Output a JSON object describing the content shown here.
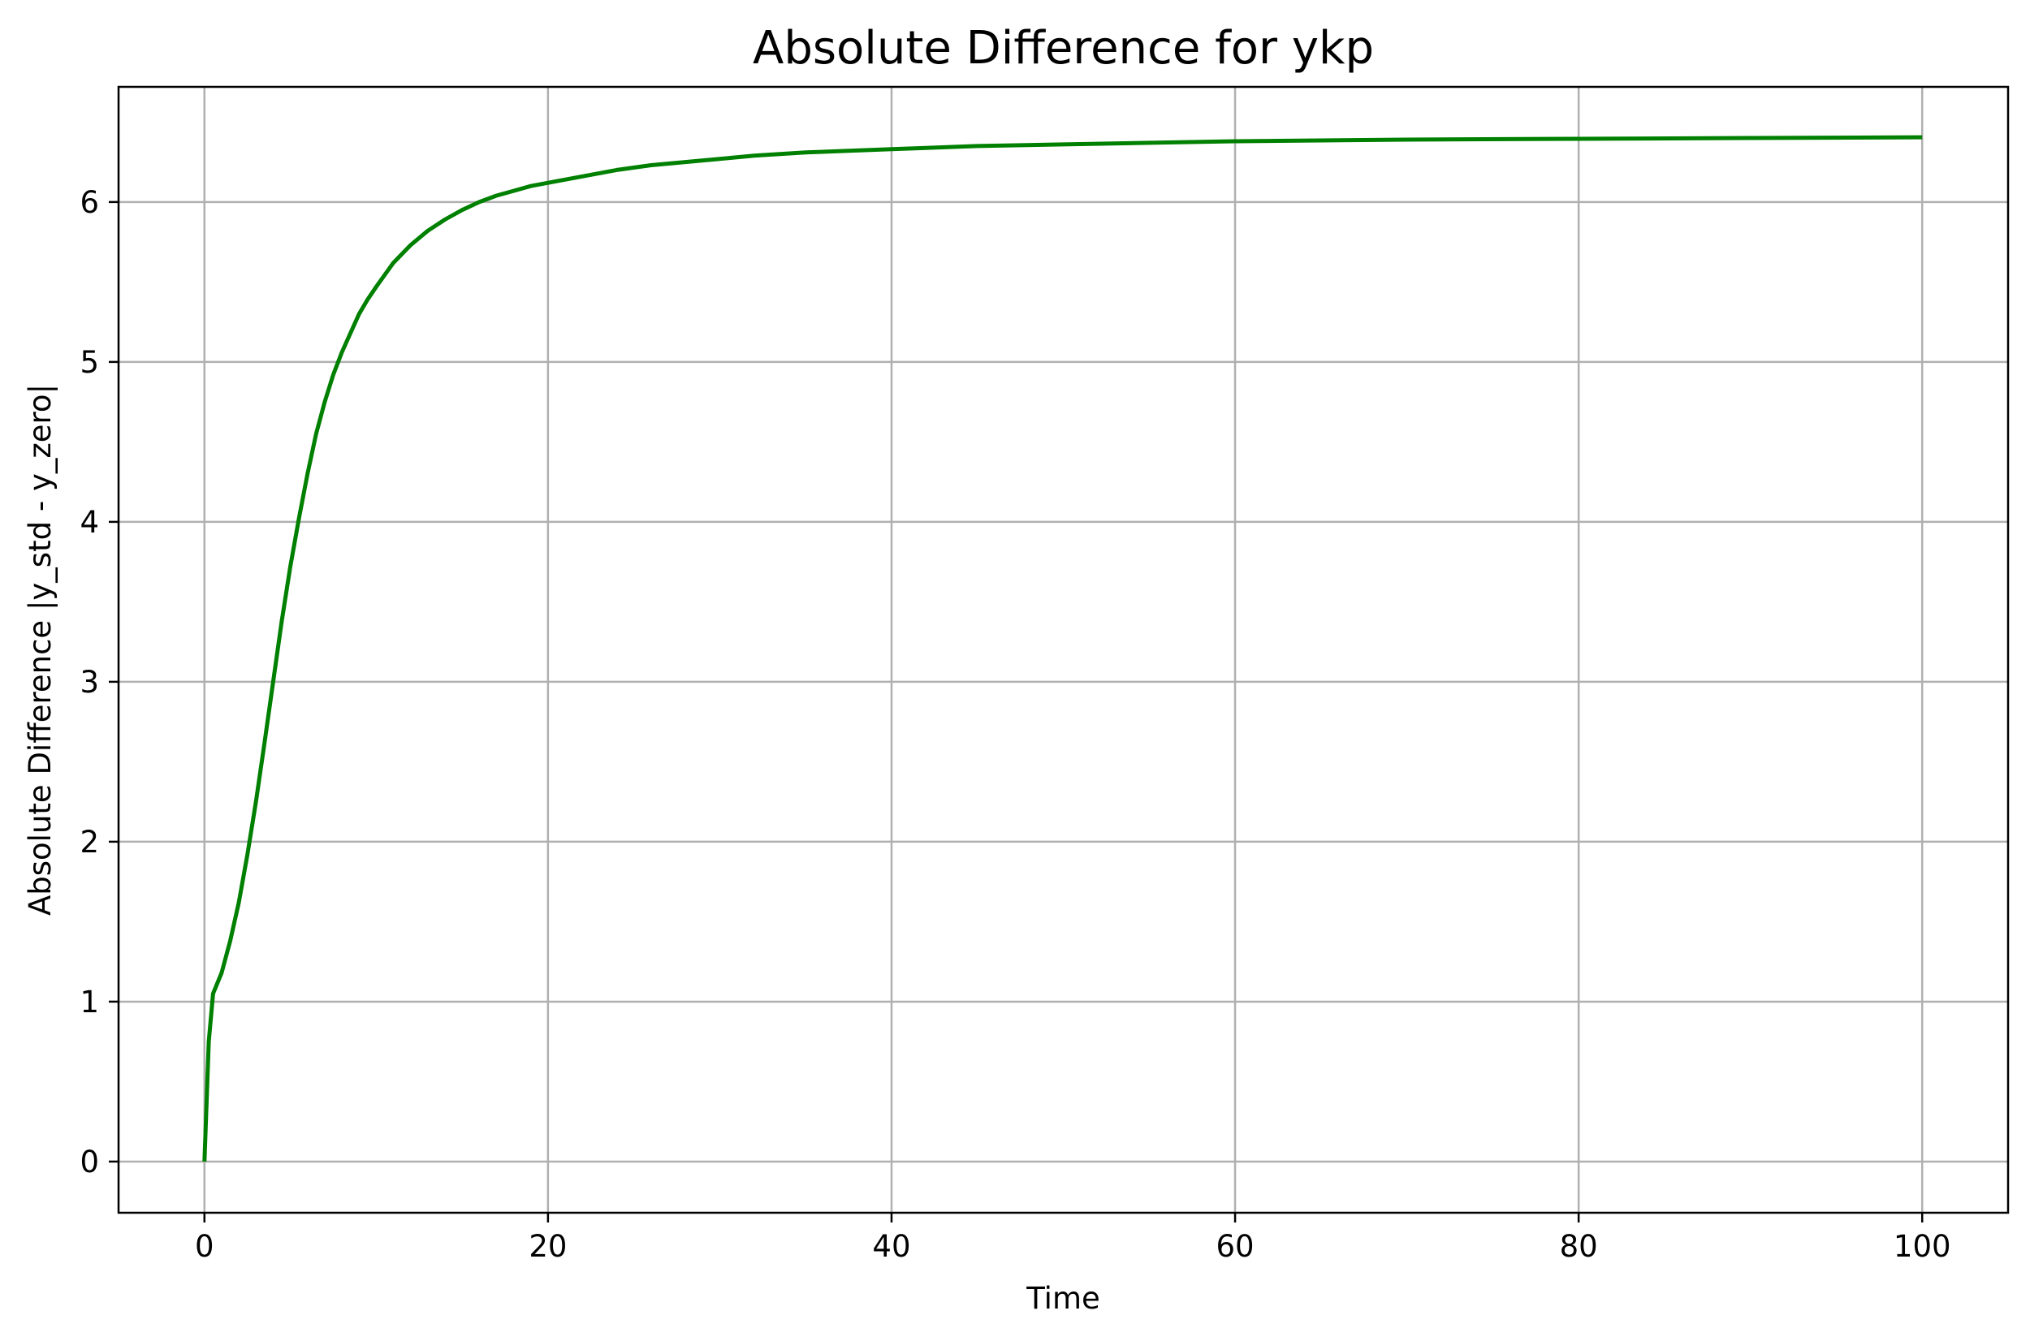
{
  "chart_data": {
    "type": "line",
    "title": "Absolute Difference for ykp",
    "xlabel": "Time",
    "ylabel": "Absolute Difference |y_std - y_zero|",
    "xlim": [
      -5,
      105
    ],
    "ylim": [
      -0.32,
      6.72
    ],
    "x_ticks": [
      0,
      20,
      40,
      60,
      80,
      100
    ],
    "y_ticks": [
      0,
      1,
      2,
      3,
      4,
      5,
      6
    ],
    "grid": true,
    "legend": "none",
    "series": [
      {
        "color": "#008000",
        "x": [
          0,
          0.25,
          0.5,
          1,
          1.5,
          2,
          2.5,
          3,
          3.5,
          4,
          4.5,
          5,
          5.5,
          6,
          6.5,
          7,
          7.5,
          8,
          8.5,
          9,
          9.5,
          10,
          11,
          12,
          13,
          14,
          15,
          16,
          17,
          18,
          19,
          20,
          22,
          24,
          26,
          28,
          30,
          32,
          35,
          40,
          45,
          50,
          60,
          70,
          80,
          90,
          100
        ],
        "y": [
          0,
          0.75,
          1.05,
          1.18,
          1.38,
          1.62,
          1.92,
          2.25,
          2.62,
          3.0,
          3.38,
          3.72,
          4.02,
          4.3,
          4.55,
          4.75,
          4.92,
          5.06,
          5.18,
          5.3,
          5.39,
          5.47,
          5.62,
          5.73,
          5.82,
          5.89,
          5.95,
          6.0,
          6.04,
          6.07,
          6.1,
          6.12,
          6.16,
          6.2,
          6.23,
          6.25,
          6.27,
          6.29,
          6.31,
          6.33,
          6.35,
          6.36,
          6.38,
          6.39,
          6.395,
          6.4,
          6.405
        ]
      }
    ]
  }
}
